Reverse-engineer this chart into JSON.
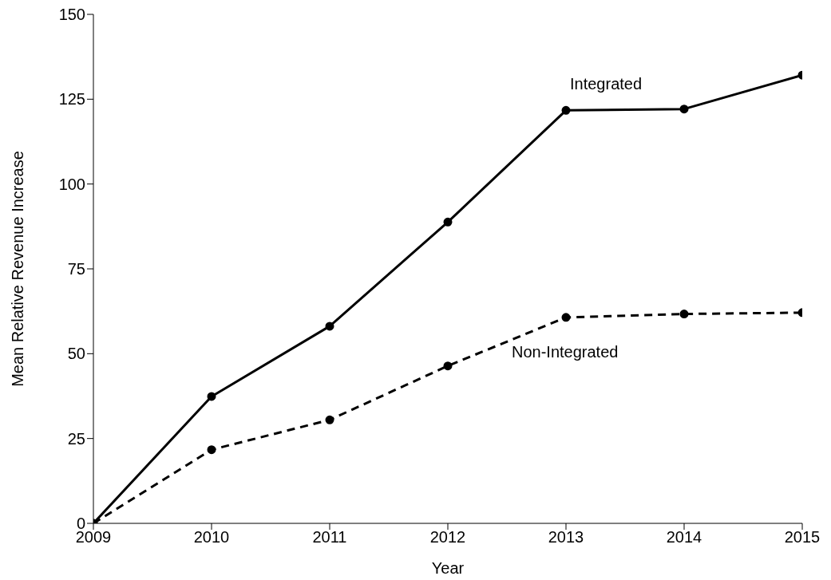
{
  "chart_data": {
    "type": "line",
    "xlabel": "Year",
    "ylabel": "Mean Relative Revenue Increase",
    "x": [
      2009,
      2010,
      2011,
      2012,
      2013,
      2014,
      2015
    ],
    "series": [
      {
        "name": "Integrated",
        "color": "#000000",
        "line_style": "solid",
        "values": [
          0,
          37.4,
          58.1,
          88.8,
          121.7,
          122.1,
          132.1
        ]
      },
      {
        "name": "Non-Integrated",
        "color": "#000000",
        "line_style": "dashed",
        "values": [
          0,
          21.7,
          30.5,
          46.4,
          60.7,
          61.7,
          62.1
        ]
      }
    ],
    "xlim": [
      2009,
      2015
    ],
    "xticks": [
      2009,
      2010,
      2011,
      2012,
      2013,
      2014,
      2015
    ],
    "ylim": [
      0,
      150
    ],
    "yticks": [
      0,
      25,
      50,
      75,
      100,
      125,
      150
    ],
    "grid": false,
    "legend": false,
    "marker": "circle"
  }
}
